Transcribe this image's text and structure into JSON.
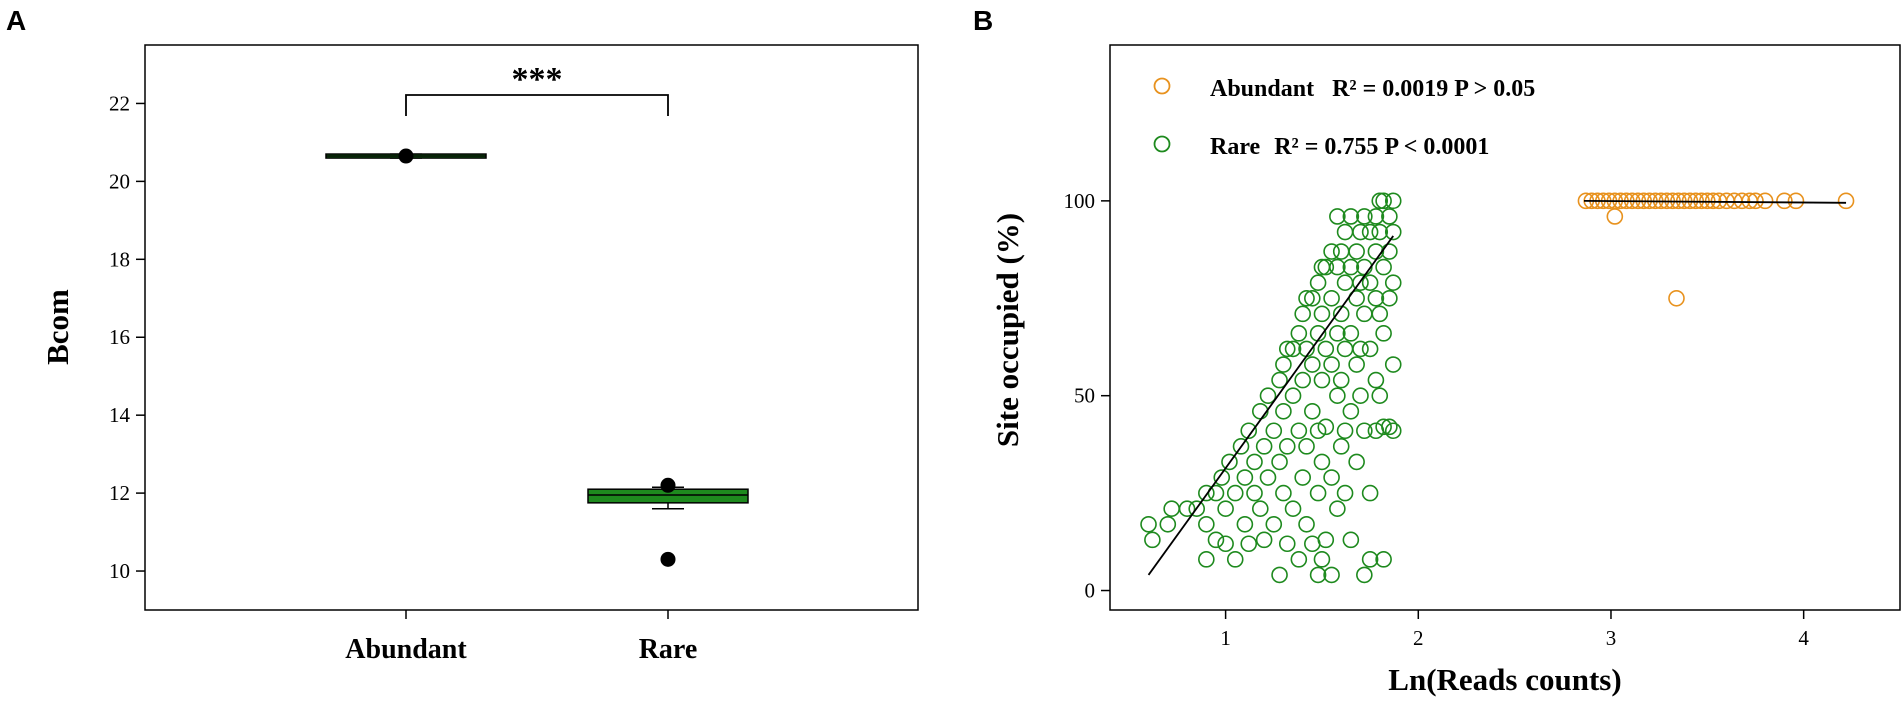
{
  "chart_data": [
    {
      "panel": "A",
      "type": "box",
      "ylabel": "Bcom",
      "xlabel": "",
      "ylim": [
        9,
        23.5
      ],
      "yticks": [
        10,
        12,
        14,
        16,
        18,
        20,
        22
      ],
      "categories": [
        "Abundant",
        "Rare"
      ],
      "boxes": [
        {
          "name": "Abundant",
          "min": 20.6,
          "q1": 20.6,
          "median": 20.65,
          "q3": 20.7,
          "max": 20.7,
          "outliers": [
            20.65
          ]
        },
        {
          "name": "Rare",
          "min": 11.6,
          "q1": 11.75,
          "median": 11.95,
          "q3": 12.1,
          "max": 12.15,
          "outliers": [
            12.2,
            10.3
          ]
        }
      ],
      "box_color": "#1e8a1e",
      "significance": "***"
    },
    {
      "panel": "B",
      "type": "scatter",
      "xlabel": "Ln(Reads counts)",
      "ylabel": "Site occupied (%)",
      "xlim": [
        0.4,
        4.5
      ],
      "ylim": [
        -5,
        140
      ],
      "xticks": [
        1,
        2,
        3,
        4
      ],
      "yticks": [
        0,
        50,
        100
      ],
      "series": [
        {
          "name": "Abundant",
          "legend_stat": "R² = 0.0019 P > 0.05",
          "color": "#e8921e",
          "fit": {
            "x": [
              2.86,
              4.22
            ],
            "y": [
              100,
              99.5
            ]
          },
          "points": [
            [
              2.87,
              100
            ],
            [
              2.9,
              100
            ],
            [
              2.93,
              100
            ],
            [
              2.96,
              100
            ],
            [
              2.99,
              100
            ],
            [
              3.02,
              100
            ],
            [
              3.05,
              100
            ],
            [
              3.08,
              100
            ],
            [
              3.11,
              100
            ],
            [
              3.14,
              100
            ],
            [
              3.17,
              100
            ],
            [
              3.2,
              100
            ],
            [
              3.23,
              100
            ],
            [
              3.26,
              100
            ],
            [
              3.29,
              100
            ],
            [
              3.32,
              100
            ],
            [
              3.35,
              100
            ],
            [
              3.38,
              100
            ],
            [
              3.41,
              100
            ],
            [
              3.44,
              100
            ],
            [
              3.47,
              100
            ],
            [
              3.5,
              100
            ],
            [
              3.53,
              100
            ],
            [
              3.56,
              100
            ],
            [
              3.6,
              100
            ],
            [
              3.64,
              100
            ],
            [
              3.68,
              100
            ],
            [
              3.72,
              100
            ],
            [
              3.75,
              100
            ],
            [
              3.8,
              100
            ],
            [
              3.9,
              100
            ],
            [
              3.96,
              100
            ],
            [
              4.22,
              100
            ],
            [
              3.02,
              96
            ],
            [
              3.34,
              75
            ]
          ]
        },
        {
          "name": "Rare",
          "legend_stat": "R² = 0.755 P < 0.0001",
          "color": "#1e8a1e",
          "fit": {
            "x": [
              0.6,
              1.87
            ],
            "y": [
              4,
              91
            ]
          },
          "points": [
            [
              0.6,
              17
            ],
            [
              0.62,
              13
            ],
            [
              0.7,
              17
            ],
            [
              0.72,
              21
            ],
            [
              0.8,
              21
            ],
            [
              0.85,
              21
            ],
            [
              0.9,
              25
            ],
            [
              0.9,
              17
            ],
            [
              0.95,
              25
            ],
            [
              0.95,
              13
            ],
            [
              0.9,
              8
            ],
            [
              0.98,
              29
            ],
            [
              1.0,
              21
            ],
            [
              1.0,
              12
            ],
            [
              1.02,
              33
            ],
            [
              1.05,
              25
            ],
            [
              1.05,
              8
            ],
            [
              1.08,
              37
            ],
            [
              1.1,
              29
            ],
            [
              1.1,
              17
            ],
            [
              1.12,
              41
            ],
            [
              1.12,
              12
            ],
            [
              1.15,
              33
            ],
            [
              1.15,
              25
            ],
            [
              1.18,
              46
            ],
            [
              1.18,
              21
            ],
            [
              1.2,
              37
            ],
            [
              1.2,
              13
            ],
            [
              1.22,
              50
            ],
            [
              1.22,
              29
            ],
            [
              1.25,
              41
            ],
            [
              1.25,
              17
            ],
            [
              1.28,
              54
            ],
            [
              1.28,
              33
            ],
            [
              1.28,
              4
            ],
            [
              1.3,
              58
            ],
            [
              1.3,
              46
            ],
            [
              1.3,
              25
            ],
            [
              1.32,
              62
            ],
            [
              1.32,
              37
            ],
            [
              1.32,
              12
            ],
            [
              1.35,
              62
            ],
            [
              1.35,
              50
            ],
            [
              1.35,
              21
            ],
            [
              1.38,
              66
            ],
            [
              1.38,
              41
            ],
            [
              1.38,
              8
            ],
            [
              1.4,
              71
            ],
            [
              1.4,
              54
            ],
            [
              1.4,
              29
            ],
            [
              1.42,
              75
            ],
            [
              1.42,
              62
            ],
            [
              1.42,
              37
            ],
            [
              1.42,
              17
            ],
            [
              1.45,
              75
            ],
            [
              1.45,
              58
            ],
            [
              1.45,
              46
            ],
            [
              1.45,
              12
            ],
            [
              1.48,
              79
            ],
            [
              1.48,
              66
            ],
            [
              1.48,
              41
            ],
            [
              1.48,
              25
            ],
            [
              1.48,
              4
            ],
            [
              1.5,
              83
            ],
            [
              1.5,
              71
            ],
            [
              1.5,
              54
            ],
            [
              1.5,
              33
            ],
            [
              1.5,
              8
            ],
            [
              1.52,
              83
            ],
            [
              1.52,
              62
            ],
            [
              1.52,
              42
            ],
            [
              1.52,
              13
            ],
            [
              1.55,
              87
            ],
            [
              1.55,
              75
            ],
            [
              1.55,
              58
            ],
            [
              1.55,
              29
            ],
            [
              1.55,
              4
            ],
            [
              1.58,
              96
            ],
            [
              1.58,
              83
            ],
            [
              1.58,
              66
            ],
            [
              1.58,
              50
            ],
            [
              1.58,
              21
            ],
            [
              1.6,
              87
            ],
            [
              1.6,
              71
            ],
            [
              1.6,
              54
            ],
            [
              1.6,
              37
            ],
            [
              1.62,
              92
            ],
            [
              1.62,
              79
            ],
            [
              1.62,
              62
            ],
            [
              1.62,
              41
            ],
            [
              1.62,
              25
            ],
            [
              1.65,
              96
            ],
            [
              1.65,
              83
            ],
            [
              1.65,
              66
            ],
            [
              1.65,
              46
            ],
            [
              1.65,
              13
            ],
            [
              1.68,
              87
            ],
            [
              1.68,
              75
            ],
            [
              1.68,
              58
            ],
            [
              1.68,
              33
            ],
            [
              1.7,
              92
            ],
            [
              1.7,
              79
            ],
            [
              1.7,
              62
            ],
            [
              1.7,
              50
            ],
            [
              1.72,
              96
            ],
            [
              1.72,
              83
            ],
            [
              1.72,
              71
            ],
            [
              1.72,
              41
            ],
            [
              1.72,
              4
            ],
            [
              1.75,
              92
            ],
            [
              1.75,
              79
            ],
            [
              1.75,
              62
            ],
            [
              1.75,
              25
            ],
            [
              1.75,
              8
            ],
            [
              1.78,
              96
            ],
            [
              1.78,
              87
            ],
            [
              1.78,
              75
            ],
            [
              1.78,
              54
            ],
            [
              1.78,
              41
            ],
            [
              1.8,
              100
            ],
            [
              1.8,
              92
            ],
            [
              1.8,
              71
            ],
            [
              1.8,
              50
            ],
            [
              1.82,
              100
            ],
            [
              1.82,
              83
            ],
            [
              1.82,
              66
            ],
            [
              1.82,
              42
            ],
            [
              1.82,
              8
            ],
            [
              1.85,
              96
            ],
            [
              1.85,
              87
            ],
            [
              1.85,
              75
            ],
            [
              1.85,
              42
            ],
            [
              1.87,
              100
            ],
            [
              1.87,
              92
            ],
            [
              1.87,
              79
            ],
            [
              1.87,
              58
            ],
            [
              1.87,
              41
            ]
          ]
        }
      ]
    }
  ]
}
